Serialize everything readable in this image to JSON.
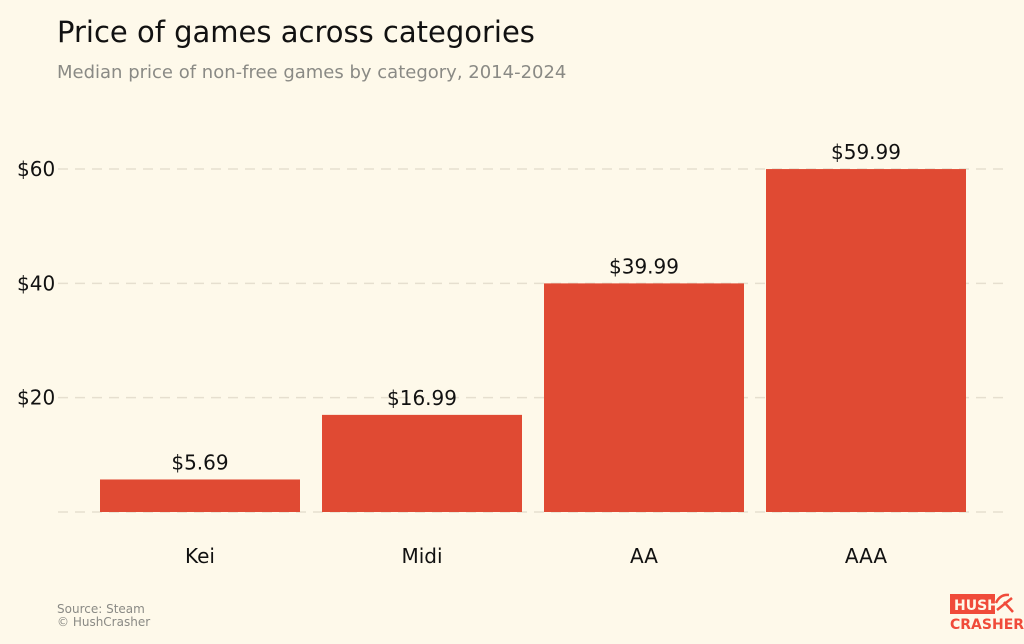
{
  "chart_data": {
    "type": "bar",
    "title": "Price of games across categories",
    "subtitle": "Median price of non-free games by category, 2014-2024",
    "categories": [
      "Kei",
      "Midi",
      "AA",
      "AAA"
    ],
    "values": [
      5.69,
      16.99,
      39.99,
      59.99
    ],
    "data_labels": [
      "$5.69",
      "$16.99",
      "$39.99",
      "$59.99"
    ],
    "xlabel": "",
    "ylabel": "",
    "ylim": [
      0,
      60
    ],
    "yticks": [
      0,
      20,
      40,
      60
    ],
    "ytick_labels": [
      "",
      "$20",
      "$40",
      "$60"
    ],
    "grid": "horizontal dashed",
    "bar_color": "#e04a33",
    "background": "#fef9ea"
  },
  "footer": {
    "source": "Source: Steam",
    "credit": "© HushCrasher"
  },
  "logo": {
    "line1": "HUSH",
    "line2": "CRASHER",
    "color": "#f04b3a"
  }
}
